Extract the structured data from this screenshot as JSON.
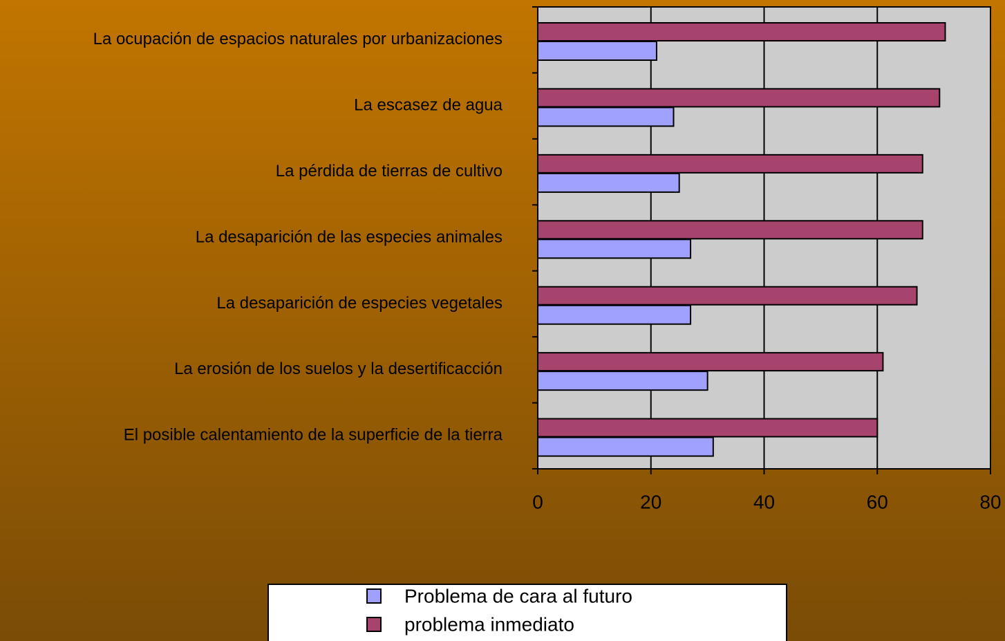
{
  "chart_data": {
    "type": "bar",
    "orientation": "horizontal",
    "categories": [
      "La ocupación de espacios naturales por urbanizaciones",
      "La escasez de agua",
      "La pérdida de tierras de cultivo",
      "La desaparición de las especies animales",
      "La desaparición de especies vegetales",
      "La erosión de los suelos y la desertificacción",
      "El posible calentamiento de la superficie de la tierra"
    ],
    "series": [
      {
        "name": "Problema de cara al futuro",
        "color": "#a0a0ff",
        "values": [
          21,
          24,
          25,
          27,
          27,
          30,
          31
        ]
      },
      {
        "name": "problema inmediato",
        "color": "#a6446e",
        "values": [
          72,
          71,
          68,
          68,
          67,
          61,
          60
        ]
      }
    ],
    "xlim": [
      0,
      80
    ],
    "xticks": [
      0,
      20,
      40,
      60,
      80
    ],
    "grid": true
  }
}
